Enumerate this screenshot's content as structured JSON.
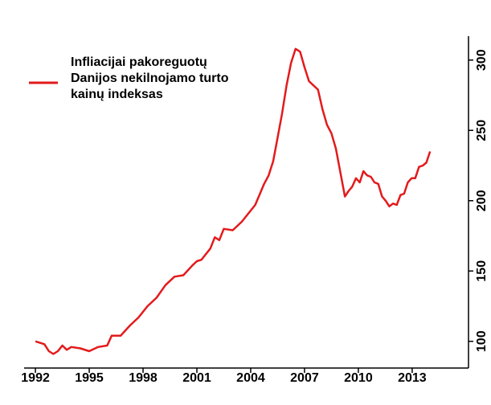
{
  "chart_data": {
    "type": "line",
    "x": [
      1992.0,
      1992.5,
      1992.75,
      1993.0,
      1993.25,
      1993.5,
      1993.75,
      1994.0,
      1994.5,
      1995.0,
      1995.5,
      1996.0,
      1996.25,
      1996.75,
      1997.25,
      1997.75,
      1998.25,
      1998.75,
      1999.25,
      1999.75,
      2000.25,
      2000.75,
      2001.0,
      2001.25,
      2001.75,
      2002.0,
      2002.25,
      2002.5,
      2003.0,
      2003.5,
      2004.0,
      2004.25,
      2004.75,
      2005.0,
      2005.25,
      2005.5,
      2005.75,
      2006.0,
      2006.25,
      2006.5,
      2006.75,
      2007.0,
      2007.25,
      2007.5,
      2007.75,
      2008.0,
      2008.25,
      2008.5,
      2008.75,
      2009.0,
      2009.25,
      2009.46,
      2009.66,
      2009.87,
      2010.08,
      2010.28,
      2010.49,
      2010.7,
      2010.9,
      2011.11,
      2011.32,
      2011.52,
      2011.73,
      2011.94,
      2012.14,
      2012.35,
      2012.55,
      2012.76,
      2012.97,
      2013.17,
      2013.38,
      2013.59,
      2013.79,
      2014.0
    ],
    "series": [
      {
        "name": "Infliacijai pakoreguotų\nDanijos nekilnojamo turto\nkainų indeksas",
        "color": "#e31a1c",
        "values": [
          100,
          98,
          93,
          91,
          93,
          97,
          94,
          96,
          95,
          93,
          96,
          97,
          104,
          104,
          111,
          117,
          125,
          131,
          140,
          146,
          147,
          154,
          157,
          158,
          166,
          174,
          172,
          180,
          179,
          185,
          193,
          197,
          212,
          218,
          228,
          245,
          262,
          282,
          298,
          308,
          306,
          295,
          285,
          282,
          279,
          265,
          254,
          248,
          237,
          220,
          203,
          207,
          210,
          216,
          213,
          221,
          218,
          217,
          213,
          212,
          203,
          200,
          196,
          198,
          197,
          204,
          205,
          213,
          216,
          216,
          224,
          225,
          227,
          235
        ]
      }
    ],
    "xlim": [
      1991.37,
      2016.14
    ],
    "xticks": [
      1992,
      1995,
      1998,
      2001,
      2004,
      2007,
      2010,
      2013
    ],
    "ylim": [
      81,
      317
    ],
    "yticks": [
      100,
      150,
      200,
      250,
      300
    ],
    "legend": "top-left"
  }
}
